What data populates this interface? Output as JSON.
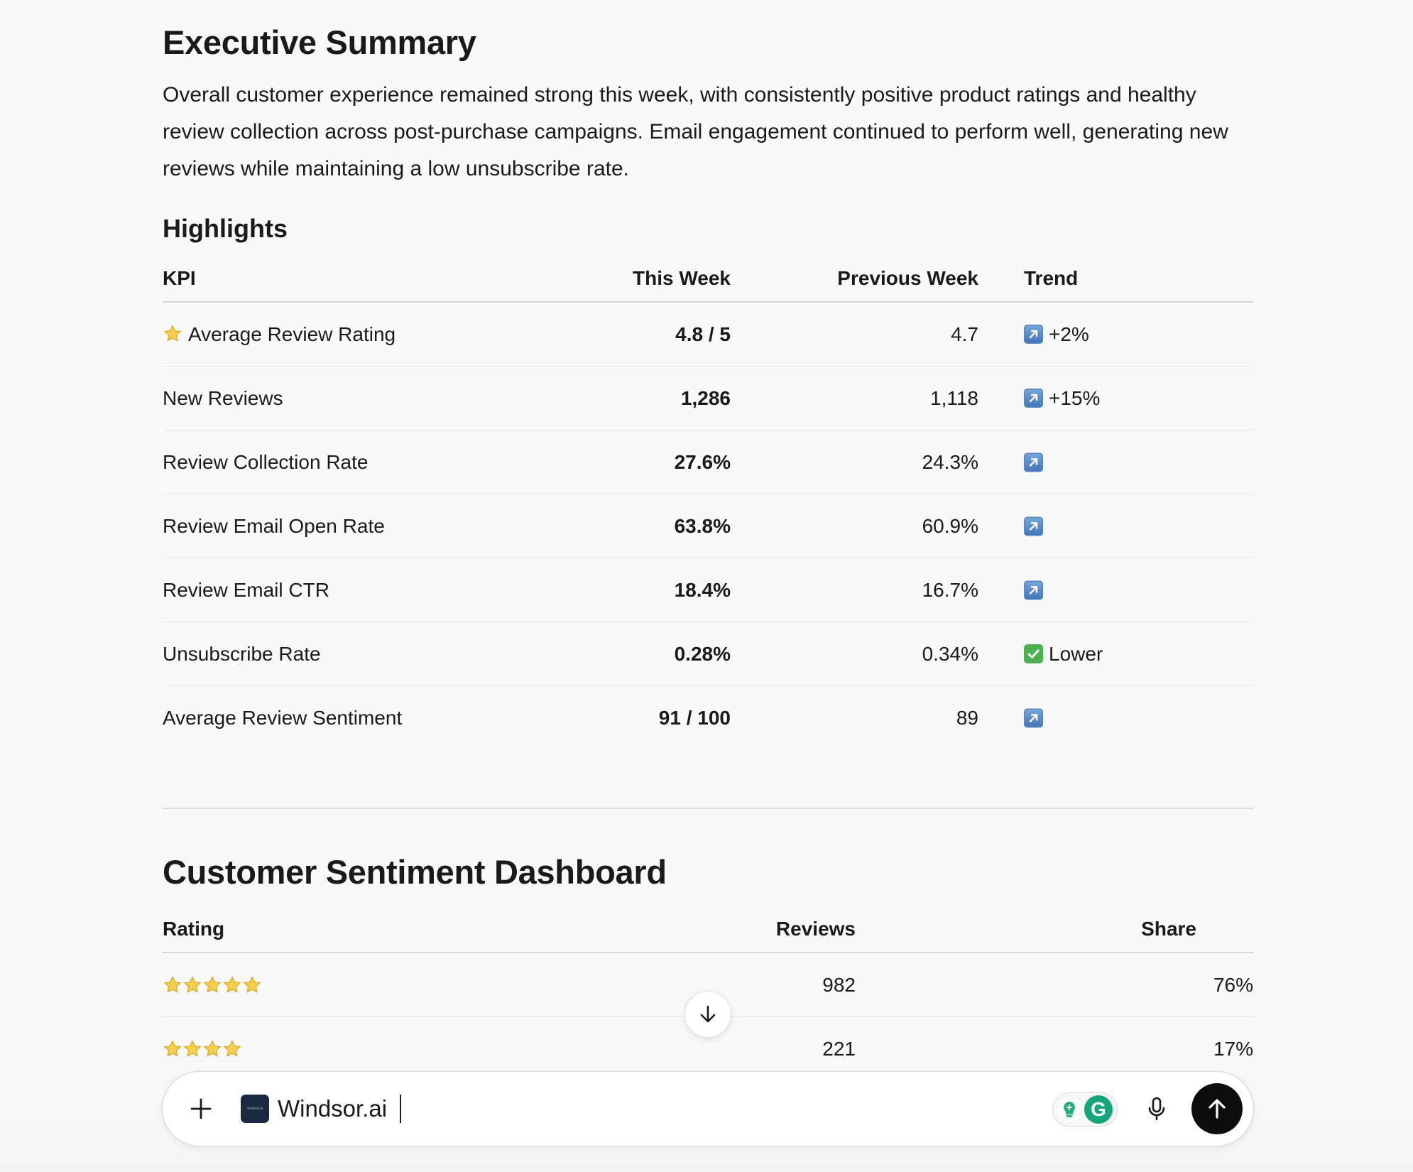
{
  "summary": {
    "title": "Executive Summary",
    "text": "Overall customer experience remained strong this week, with consistently positive product ratings and healthy review collection across post-purchase campaigns. Email engagement continued to perform well, generating new reviews while maintaining a low unsubscribe rate."
  },
  "highlights": {
    "title": "Highlights",
    "columns": [
      "KPI",
      "This Week",
      "Previous Week",
      "Trend"
    ],
    "rows": [
      {
        "kpi": "Average Review Rating",
        "icon": "star-icon",
        "this_week": "4.8 / 5",
        "prev_week": "4.7",
        "trend_icon": "trend-up-icon",
        "trend": "+2%"
      },
      {
        "kpi": "New Reviews",
        "this_week": "1,286",
        "prev_week": "1,118",
        "trend_icon": "trend-up-icon",
        "trend": "+15%"
      },
      {
        "kpi": "Review Collection Rate",
        "this_week": "27.6%",
        "prev_week": "24.3%",
        "trend_icon": "trend-up-icon",
        "trend": ""
      },
      {
        "kpi": "Review Email Open Rate",
        "this_week": "63.8%",
        "prev_week": "60.9%",
        "trend_icon": "trend-up-icon",
        "trend": ""
      },
      {
        "kpi": "Review Email CTR",
        "this_week": "18.4%",
        "prev_week": "16.7%",
        "trend_icon": "trend-up-icon",
        "trend": ""
      },
      {
        "kpi": "Unsubscribe Rate",
        "this_week": "0.28%",
        "prev_week": "0.34%",
        "trend_icon": "check-mark-icon",
        "trend": "Lower"
      },
      {
        "kpi": "Average Review Sentiment",
        "this_week": "91 / 100",
        "prev_week": "89",
        "trend_icon": "trend-up-icon",
        "trend": ""
      }
    ]
  },
  "sentiment": {
    "title": "Customer Sentiment Dashboard",
    "columns": [
      "Rating",
      "Reviews",
      "Share"
    ],
    "rows": [
      {
        "stars": 5,
        "reviews": "982",
        "share": "76%"
      },
      {
        "stars": 4,
        "reviews": "221",
        "share": "17%"
      }
    ]
  },
  "composer": {
    "tool_name": "Windsor.ai",
    "tool_logo_text": "windsor.ai"
  },
  "colors": {
    "background": "#f9f9f9",
    "text": "#1a1a1a",
    "star": "#f5c542",
    "trend_icon": "#3f74b8",
    "check": "#4caf50",
    "send_button": "#0d0d0d",
    "grammarly": "#15a57a"
  }
}
